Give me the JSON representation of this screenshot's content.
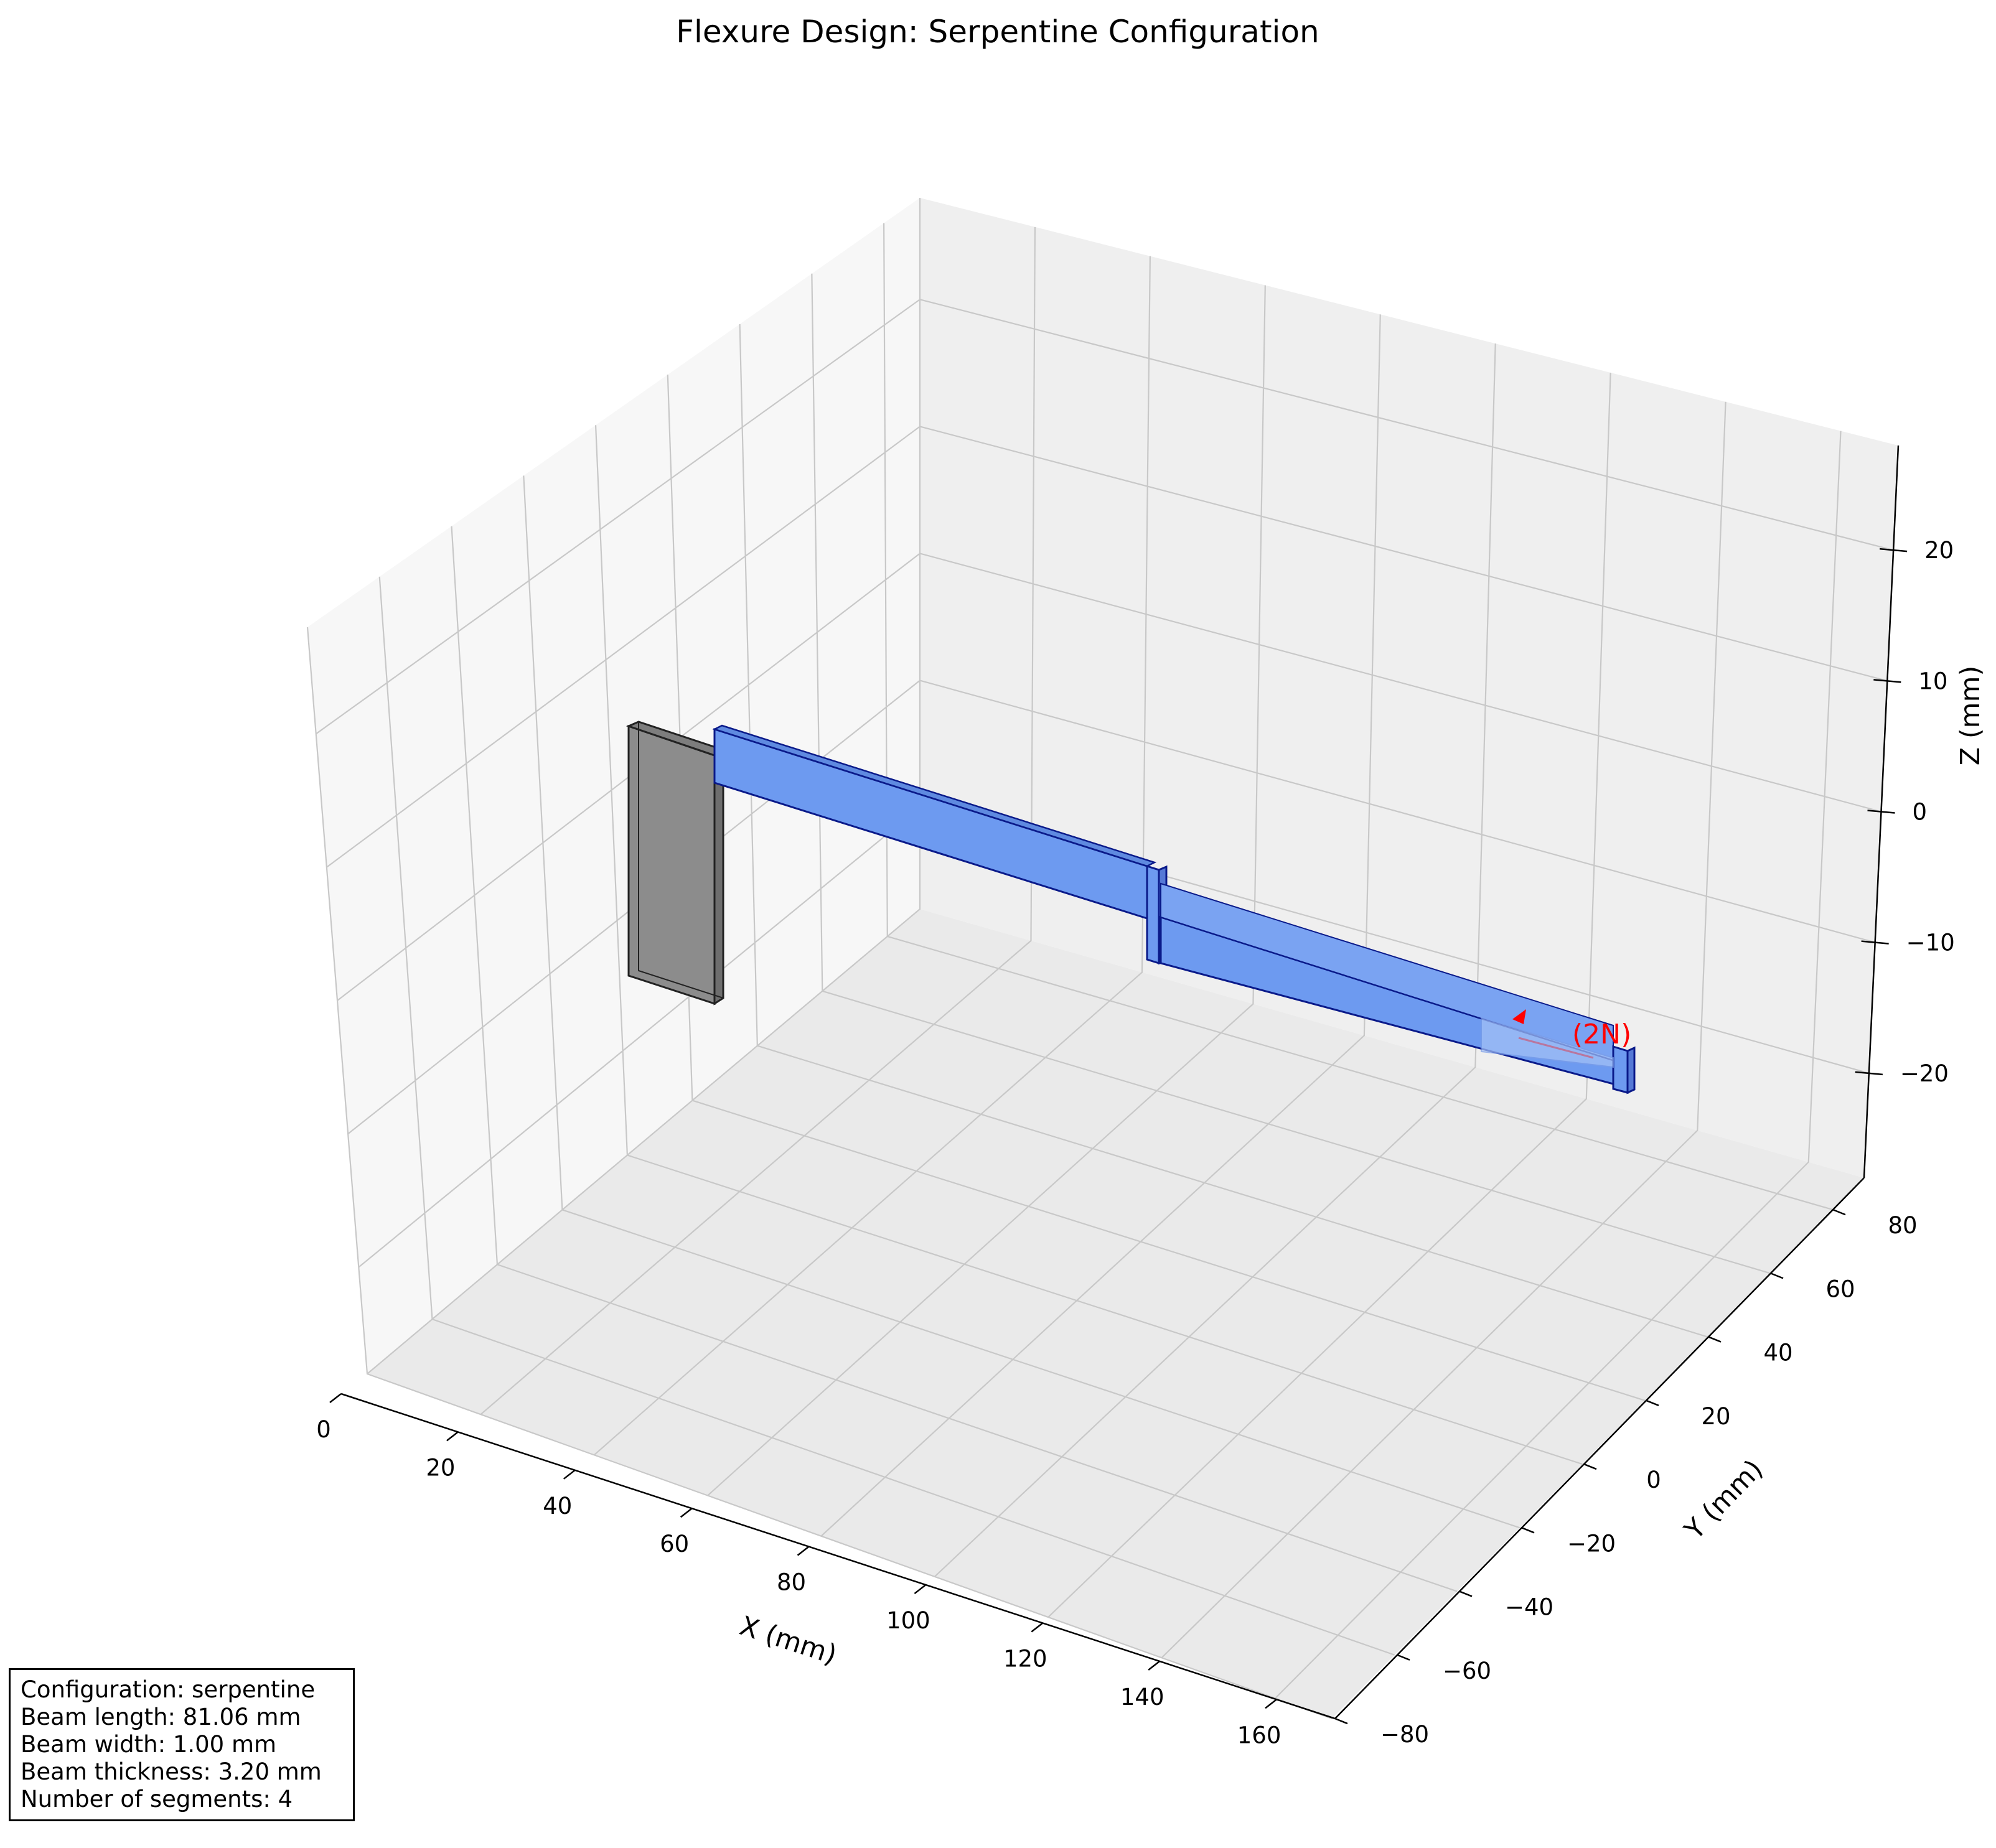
{
  "chart_data": {
    "type": "3d-bar",
    "title": "Flexure Design: Serpentine Configuration",
    "xlabel": "X (mm)",
    "ylabel": "Y (mm)",
    "zlabel": "Z (mm)",
    "xlim": [
      0,
      170
    ],
    "ylim": [
      -80,
      90
    ],
    "zlim": [
      -28,
      28
    ],
    "xticks": [
      "0",
      "20",
      "40",
      "60",
      "80",
      "100",
      "120",
      "140",
      "160"
    ],
    "yticks": [
      "−80",
      "−60",
      "−40",
      "−20",
      "0",
      "20",
      "40",
      "60",
      "80"
    ],
    "zticks": [
      "−20",
      "−10",
      "0",
      "10",
      "20"
    ],
    "grid": true,
    "colors": {
      "beam_face": "#6d9af0",
      "beam_edge": "#0a1a8a",
      "anchor_face": "#8c8c8c",
      "anchor_edge": "#222222",
      "force": "#ff0000"
    },
    "force_label": "(2N)",
    "info": {
      "configuration": "Configuration: serpentine",
      "beam_length": "Beam length: 81.06 mm",
      "beam_width": "Beam width: 1.00 mm",
      "beam_thickness": "Beam thickness: 3.20 mm",
      "num_segments": "Number of segments: 4"
    }
  }
}
